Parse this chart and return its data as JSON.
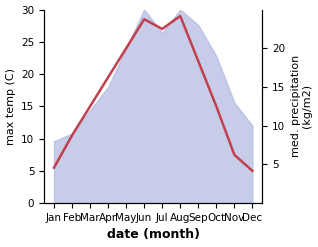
{
  "months": [
    "Jan",
    "Feb",
    "Mar",
    "Apr",
    "May",
    "Jun",
    "Jul",
    "Aug",
    "Sep",
    "Oct",
    "Nov",
    "Dec"
  ],
  "temperature": [
    5.5,
    10.5,
    15.0,
    19.5,
    24.0,
    28.5,
    27.0,
    29.0,
    22.0,
    15.0,
    7.5,
    5.0
  ],
  "precipitation": [
    8.0,
    9.0,
    12.0,
    15.0,
    20.0,
    25.0,
    22.0,
    25.0,
    23.0,
    19.0,
    13.0,
    10.0
  ],
  "temp_color": "#c04050",
  "precip_color": "#b0b8e0",
  "ylabel_left": "max temp (C)",
  "ylabel_right": "med. precipitation\n(kg/m2)",
  "xlabel": "date (month)",
  "ylim_left": [
    0,
    30
  ],
  "ylim_right": [
    0,
    25
  ],
  "yticks_left": [
    0,
    5,
    10,
    15,
    20,
    25,
    30
  ],
  "yticks_right": [
    5,
    10,
    15,
    20
  ],
  "label_fontsize": 8,
  "tick_fontsize": 7.5,
  "xlabel_fontsize": 9
}
